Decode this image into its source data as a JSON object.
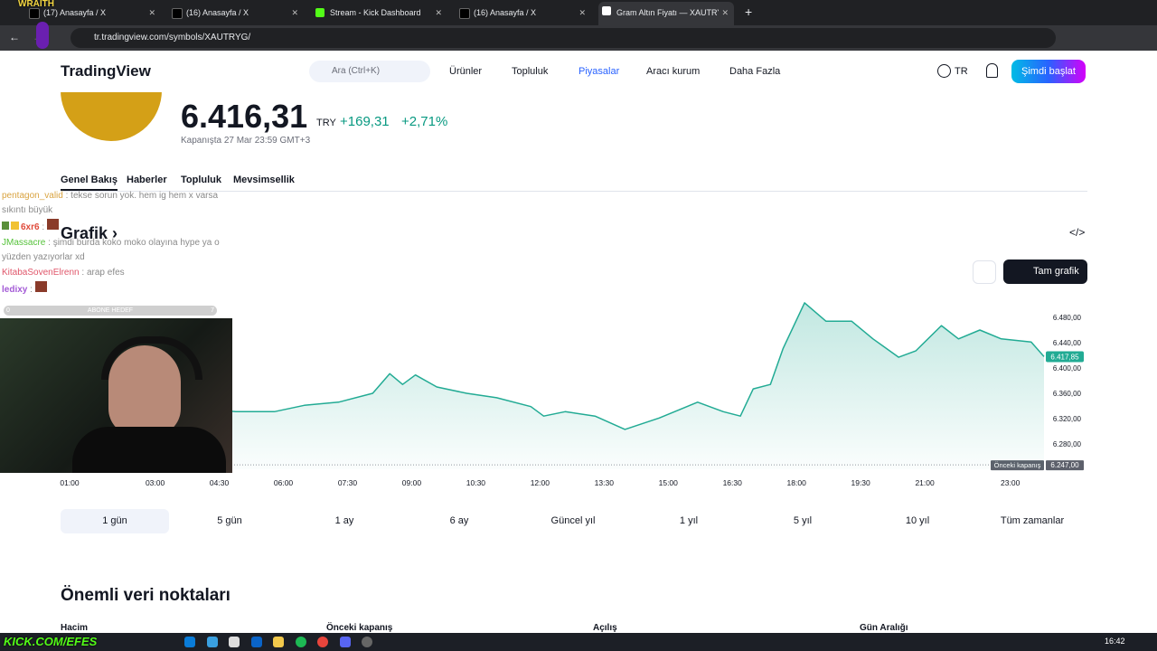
{
  "browser": {
    "tabs": [
      "(17) Anasayfa / X",
      "(16) Anasayfa / X",
      "Stream - Kick Dashboard",
      "(16) Anasayfa / X",
      "Gram Altın Fiyatı — XAUTRYG G"
    ],
    "url": "tr.tradingview.com/symbols/XAUTRYG/"
  },
  "overlay": {
    "brand": "WRAITH",
    "chat": [
      {
        "user": "pentagon_valid",
        "text": ": tekse sorun yok. hem ig hem x varsa sıkıntı büyük"
      },
      {
        "user": "6xr6",
        "text": ":"
      },
      {
        "user": "JMassacre",
        "text": ": şimdi burda koko moko olayına hype ya o yüzden yazıyorlar xd"
      },
      {
        "user": "KitabaSovenElrenn",
        "text": ": arap efes"
      },
      {
        "user": "ledixy",
        "text": ":"
      }
    ],
    "goal": {
      "label": "ABONE HEDEF",
      "start": "0",
      "end": "7"
    },
    "footer": "KICK.COM/EFES"
  },
  "header": {
    "logo": "TradingView",
    "search": "Ara (Ctrl+K)",
    "nav": [
      "Ürünler",
      "Topluluk",
      "Piyasalar",
      "Aracı kurum",
      "Daha Fazla"
    ],
    "lang": "TR",
    "cta": "Şimdi başlat"
  },
  "symbol": {
    "price": "6.416,31",
    "currency": "TRY",
    "change": "+169,31",
    "change_pct": "+2,71%",
    "closed_at": "Kapanışta 27 Mar 23:59 GMT+3"
  },
  "tabs": [
    "Genel Bakış",
    "Haberler",
    "Topluluk",
    "Mevsimsellik"
  ],
  "chart": {
    "heading": "Grafik ›",
    "full_chart": "Tam grafik",
    "type": "line",
    "color": "#22ab94",
    "x": [
      1.0,
      3.0,
      4.5,
      5.1,
      6.0,
      6.7,
      7.5,
      8.3,
      8.7,
      9.0,
      9.3,
      9.8,
      10.5,
      11.2,
      12.0,
      12.3,
      12.8,
      13.5,
      14.2,
      15.0,
      15.9,
      16.5,
      16.9,
      17.2,
      17.6,
      17.9,
      18.4,
      18.9,
      19.5,
      20.0,
      20.6,
      21.0,
      21.6,
      22.0,
      22.5,
      23.0,
      23.7,
      24.0
    ],
    "values": [
      6320,
      6325,
      6335,
      6331,
      6331,
      6341,
      6346,
      6360,
      6391,
      6374,
      6389,
      6370,
      6360,
      6353,
      6339,
      6324,
      6331,
      6324,
      6303,
      6321,
      6346,
      6331,
      6324,
      6367,
      6374,
      6431,
      6503,
      6474,
      6474,
      6446,
      6417,
      6427,
      6467,
      6446,
      6460,
      6446,
      6441,
      6418
    ],
    "xlim": [
      1,
      24
    ],
    "xticks": [
      {
        "value": 1,
        "label": "01:00"
      },
      {
        "value": 3,
        "label": "03:00"
      },
      {
        "value": 4.5,
        "label": "04:30"
      },
      {
        "value": 6,
        "label": "06:00"
      },
      {
        "value": 7.5,
        "label": "07:30"
      },
      {
        "value": 9,
        "label": "09:00"
      },
      {
        "value": 10.5,
        "label": "10:30"
      },
      {
        "value": 12,
        "label": "12:00"
      },
      {
        "value": 13.5,
        "label": "13:30"
      },
      {
        "value": 15,
        "label": "15:00"
      },
      {
        "value": 16.5,
        "label": "16:30"
      },
      {
        "value": 18,
        "label": "18:00"
      },
      {
        "value": 19.5,
        "label": "19:30"
      },
      {
        "value": 21,
        "label": "21:00"
      },
      {
        "value": 23,
        "label": "23:00"
      }
    ],
    "ylim": [
      6240,
      6510
    ],
    "yticks": [
      {
        "value": 6280,
        "label": "6.280,00"
      },
      {
        "value": 6320,
        "label": "6.320,00"
      },
      {
        "value": 6360,
        "label": "6.360,00"
      },
      {
        "value": 6400,
        "label": "6.400,00"
      },
      {
        "value": 6440,
        "label": "6.440,00"
      },
      {
        "value": 6480,
        "label": "6.480,00"
      }
    ],
    "last_price": {
      "value": 6417.85,
      "label": "6.417,85"
    },
    "previous_close": {
      "value": 6247,
      "label": "6.247,00",
      "name": "Önceki kapanış"
    }
  },
  "ranges": [
    "1 gün",
    "5 gün",
    "1 ay",
    "6 ay",
    "Güncel yıl",
    "1 yıl",
    "5 yıl",
    "10 yıl",
    "Tüm zamanlar"
  ],
  "key_data": {
    "title": "Önemli veri noktaları",
    "columns": [
      "Hacim",
      "Önceki kapanış",
      "Açılış",
      "Gün Aralığı"
    ]
  },
  "taskbar": {
    "time": "16:42"
  }
}
